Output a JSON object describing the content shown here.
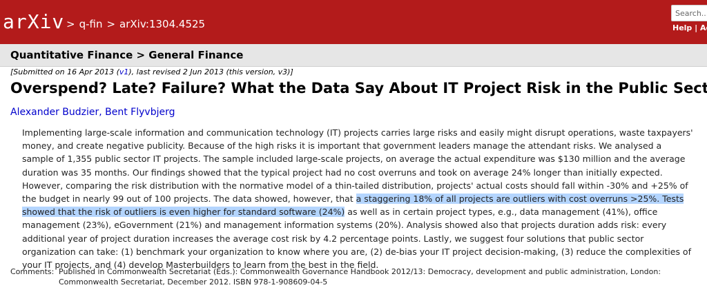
{
  "header": {
    "logo_text": "arXiv",
    "crumbs": [
      "q-fin",
      "arXiv:1304.4525"
    ],
    "crumb_sep": ">",
    "search_placeholder": "Search...",
    "help_label": "Help",
    "advanced_label": "Adv"
  },
  "subject": "Quantitative Finance > General Finance",
  "dateline": {
    "prefix": "[Submitted on 16 Apr 2013 (",
    "v1": "v1",
    "suffix": "), last revised 2 Jun 2013 (this version, v3)]"
  },
  "title": "Overspend? Late? Failure? What the Data Say About IT Project Risk in the Public Sector",
  "authors": [
    "Alexander Budzier",
    "Bent Flyvbjerg"
  ],
  "abstract": {
    "before": "Implementing large-scale information and communication technology (IT) projects carries large risks and easily might disrupt operations, waste taxpayers' money, and create negative publicity. Because of the high risks it is important that government leaders manage the attendant risks. We analysed a sample of 1,355 public sector IT projects. The sample included large-scale projects, on average the actual expenditure was $130 million and the average duration was 35 months. Our findings showed that the typical project had no cost overruns and took on average 24% longer than initially expected. However, comparing the risk distribution with the normative model of a thin-tailed distribution, projects' actual costs should fall within -30% and +25% of the budget in nearly 99 out of 100 projects. The data showed, however, that ",
    "highlight": "a staggering 18% of all projects are outliers with cost overruns >25%. Tests showed that the risk of outliers is even higher for standard software (24%)",
    "after": " as well as in certain project types, e.g., data management (41%), office management (23%), eGovernment (21%) and management information systems (20%). Analysis showed also that projects duration adds risk: every additional year of project duration increases the average cost risk by 4.2 percentage points. Lastly, we suggest four solutions that public sector organization can take: (1) benchmark your organization to know where you are, (2) de-bias your IT project decision-making, (3) reduce the complexities of your IT projects, and (4) develop Masterbuilders to learn from the best in the field."
  },
  "comments": {
    "label": "Comments:",
    "text": "Published in Commonwealth Secretariat (Eds.): Commonwealth Governance Handbook 2012/13: Democracy, development and public administration, London: Commonwealth Secretariat, December 2012. ISBN 978-1-908609-04-5"
  }
}
